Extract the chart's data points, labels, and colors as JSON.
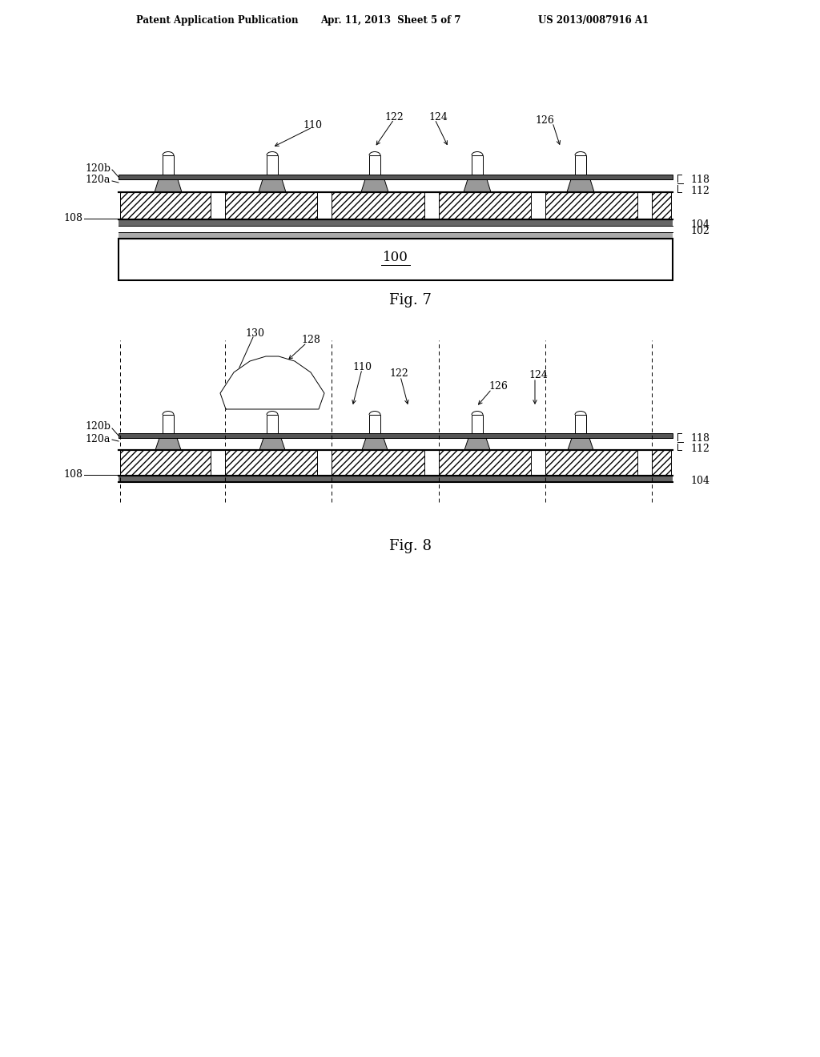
{
  "bg_color": "#ffffff",
  "lc": "#000000",
  "header_left": "Patent Application Publication",
  "header_mid": "Apr. 11, 2013  Sheet 5 of 7",
  "header_right": "US 2013/0087916 A1",
  "fig7_label": "Fig. 7",
  "fig8_label": "Fig. 8",
  "lw0": 0.7,
  "lw1": 1.5,
  "lw2": 2.2
}
